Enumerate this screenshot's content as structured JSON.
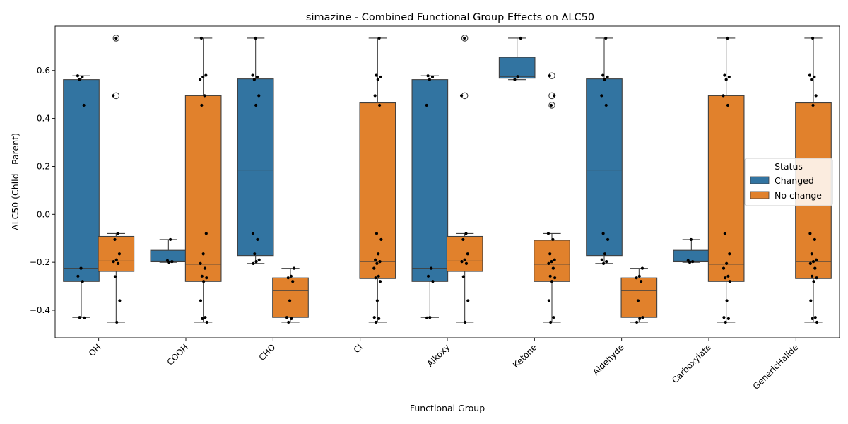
{
  "chart_data": {
    "type": "box",
    "title": "simazine - Combined Functional Group Effects on ΔLC50",
    "xlabel": "Functional Group",
    "ylabel": "ΔLC50 (Child - Parent)",
    "ylim": [
      -0.515,
      0.785
    ],
    "yticks": [
      -0.4,
      -0.2,
      0.0,
      0.2,
      0.4,
      0.6
    ],
    "ytick_labels": [
      "−0.4",
      "−0.2",
      "0.0",
      "0.2",
      "0.4",
      "0.6"
    ],
    "categories": [
      "OH",
      "COOH",
      "CHO",
      "Cl",
      "Alkoxy",
      "Ketone",
      "Aldehyde",
      "Carboxylate",
      "GenericHalide"
    ],
    "legend": {
      "title": "Status",
      "position": "center-right",
      "entries": [
        {
          "name": "Changed",
          "color": "#3274a1"
        },
        {
          "name": "No change",
          "color": "#e1812c"
        }
      ]
    },
    "series": [
      {
        "name": "Changed",
        "color": "#3274a1",
        "boxes": [
          {
            "category": "OH",
            "q1": -0.28,
            "median": -0.225,
            "q3": 0.562,
            "whisker_low": -0.43,
            "whisker_high": 0.578,
            "outliers": [],
            "points": [
              0.578,
              0.573,
              0.562,
              0.455,
              -0.225,
              -0.258,
              -0.28,
              -0.43,
              -0.432
            ]
          },
          {
            "category": "COOH",
            "q1": -0.198,
            "median": -0.195,
            "q3": -0.15,
            "whisker_low": -0.2,
            "whisker_high": -0.105,
            "outliers": [],
            "points": [
              -0.105,
              -0.193,
              -0.197,
              -0.2
            ]
          },
          {
            "category": "CHO",
            "q1": -0.172,
            "median": 0.185,
            "q3": 0.565,
            "whisker_low": -0.205,
            "whisker_high": 0.735,
            "outliers": [],
            "points": [
              0.735,
              0.58,
              0.573,
              0.562,
              0.495,
              0.455,
              -0.08,
              -0.105,
              -0.165,
              -0.19,
              -0.197,
              -0.205
            ]
          },
          {
            "category": "Alkoxy",
            "q1": -0.28,
            "median": -0.225,
            "q3": 0.562,
            "whisker_low": -0.43,
            "whisker_high": 0.578,
            "outliers": [],
            "points": [
              0.578,
              0.573,
              0.562,
              0.455,
              -0.225,
              -0.258,
              -0.28,
              -0.43,
              -0.432
            ]
          },
          {
            "category": "Ketone",
            "q1": 0.568,
            "median": 0.575,
            "q3": 0.655,
            "whisker_low": 0.562,
            "whisker_high": 0.735,
            "outliers": [],
            "points": [
              0.735,
              0.575,
              0.562
            ]
          },
          {
            "category": "Aldehyde",
            "q1": -0.172,
            "median": 0.185,
            "q3": 0.565,
            "whisker_low": -0.205,
            "whisker_high": 0.735,
            "outliers": [],
            "points": [
              0.735,
              0.58,
              0.573,
              0.562,
              0.495,
              0.455,
              -0.08,
              -0.105,
              -0.165,
              -0.19,
              -0.197,
              -0.205
            ]
          },
          {
            "category": "Carboxylate",
            "q1": -0.198,
            "median": -0.195,
            "q3": -0.15,
            "whisker_low": -0.2,
            "whisker_high": -0.105,
            "outliers": [],
            "points": [
              -0.105,
              -0.193,
              -0.197,
              -0.2
            ]
          }
        ]
      },
      {
        "name": "No change",
        "color": "#e1812c",
        "boxes": [
          {
            "category": "OH",
            "q1": -0.238,
            "median": -0.195,
            "q3": -0.092,
            "whisker_low": -0.45,
            "whisker_high": -0.08,
            "outliers": [
              0.735,
              0.495
            ],
            "points": [
              0.735,
              0.495,
              -0.08,
              -0.105,
              -0.165,
              -0.19,
              -0.197,
              -0.205,
              -0.26,
              -0.36,
              -0.45
            ]
          },
          {
            "category": "COOH",
            "q1": -0.28,
            "median": -0.208,
            "q3": 0.495,
            "whisker_low": -0.45,
            "whisker_high": 0.735,
            "outliers": [],
            "points": [
              0.735,
              0.58,
              0.573,
              0.562,
              0.495,
              0.455,
              -0.08,
              -0.165,
              -0.205,
              -0.225,
              -0.258,
              -0.265,
              -0.28,
              -0.36,
              -0.43,
              -0.435,
              -0.45
            ]
          },
          {
            "category": "CHO",
            "q1": -0.43,
            "median": -0.318,
            "q3": -0.265,
            "whisker_low": -0.45,
            "whisker_high": -0.225,
            "outliers": [],
            "points": [
              -0.225,
              -0.258,
              -0.265,
              -0.28,
              -0.36,
              -0.43,
              -0.435,
              -0.45
            ]
          },
          {
            "category": "Cl",
            "q1": -0.268,
            "median": -0.197,
            "q3": 0.465,
            "whisker_low": -0.45,
            "whisker_high": 0.735,
            "outliers": [],
            "points": [
              0.735,
              0.58,
              0.573,
              0.562,
              0.495,
              0.455,
              -0.08,
              -0.105,
              -0.165,
              -0.19,
              -0.197,
              -0.205,
              -0.225,
              -0.258,
              -0.265,
              -0.28,
              -0.36,
              -0.43,
              -0.435,
              -0.45
            ]
          },
          {
            "category": "Alkoxy",
            "q1": -0.238,
            "median": -0.195,
            "q3": -0.092,
            "whisker_low": -0.45,
            "whisker_high": -0.08,
            "outliers": [
              0.735,
              0.495
            ],
            "points": [
              0.735,
              0.495,
              -0.08,
              -0.105,
              -0.165,
              -0.19,
              -0.197,
              -0.205,
              -0.26,
              -0.36,
              -0.45
            ]
          },
          {
            "category": "Ketone",
            "q1": -0.28,
            "median": -0.208,
            "q3": -0.108,
            "whisker_low": -0.45,
            "whisker_high": -0.08,
            "outliers": [
              0.578,
              0.495,
              0.455
            ],
            "points": [
              0.578,
              0.495,
              0.455,
              -0.08,
              -0.105,
              -0.165,
              -0.19,
              -0.197,
              -0.205,
              -0.225,
              -0.258,
              -0.265,
              -0.28,
              -0.36,
              -0.43,
              -0.45
            ]
          },
          {
            "category": "Aldehyde",
            "q1": -0.43,
            "median": -0.318,
            "q3": -0.265,
            "whisker_low": -0.45,
            "whisker_high": -0.225,
            "outliers": [],
            "points": [
              -0.225,
              -0.258,
              -0.265,
              -0.28,
              -0.36,
              -0.43,
              -0.435,
              -0.45
            ]
          },
          {
            "category": "Carboxylate",
            "q1": -0.28,
            "median": -0.208,
            "q3": 0.495,
            "whisker_low": -0.45,
            "whisker_high": 0.735,
            "outliers": [],
            "points": [
              0.735,
              0.58,
              0.573,
              0.562,
              0.495,
              0.455,
              -0.08,
              -0.165,
              -0.205,
              -0.225,
              -0.258,
              -0.265,
              -0.28,
              -0.36,
              -0.43,
              -0.435,
              -0.45
            ]
          },
          {
            "category": "GenericHalide",
            "q1": -0.268,
            "median": -0.197,
            "q3": 0.465,
            "whisker_low": -0.45,
            "whisker_high": 0.735,
            "outliers": [],
            "points": [
              0.735,
              0.58,
              0.573,
              0.562,
              0.495,
              0.455,
              -0.08,
              -0.105,
              -0.165,
              -0.19,
              -0.197,
              -0.205,
              -0.225,
              -0.258,
              -0.265,
              -0.28,
              -0.36,
              -0.43,
              -0.435,
              -0.45
            ]
          }
        ]
      }
    ]
  }
}
